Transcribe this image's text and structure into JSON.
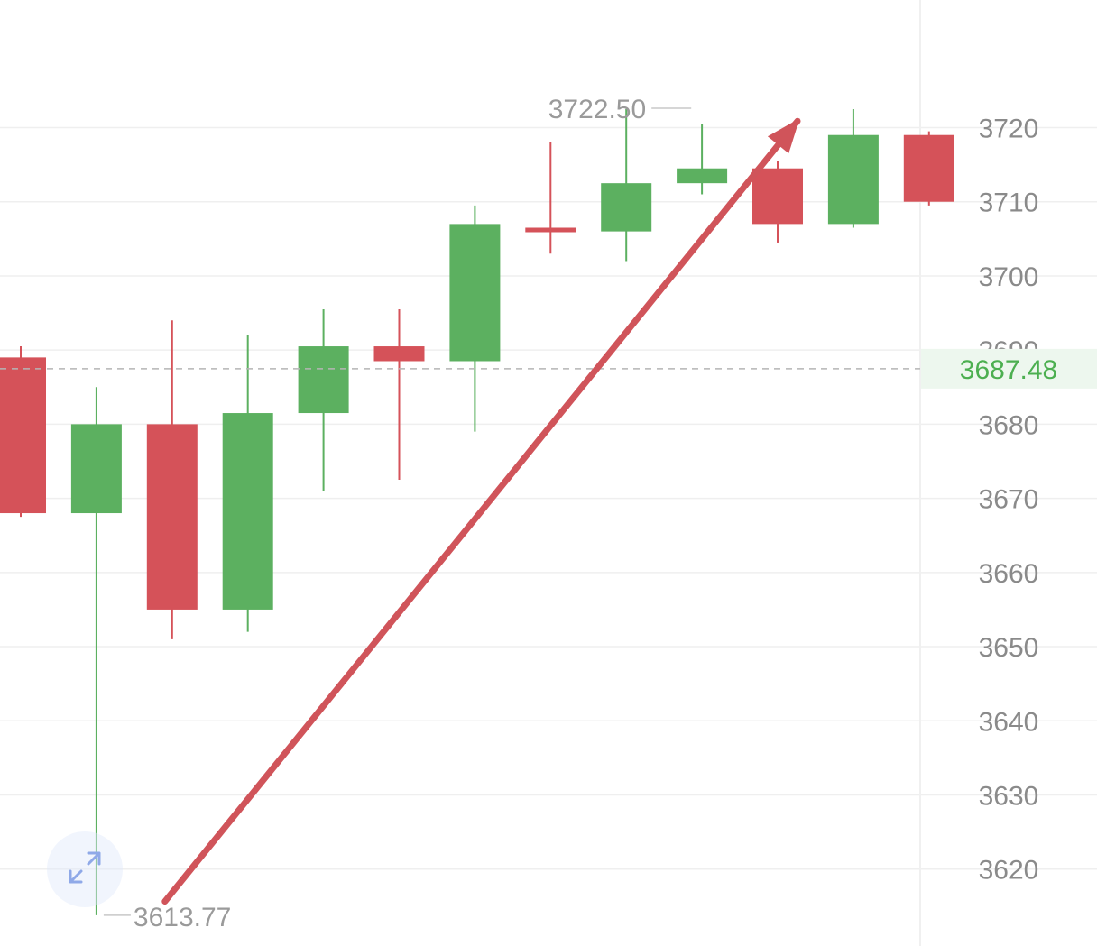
{
  "colors": {
    "up": "#5cb060",
    "down": "#d55259",
    "grid": "#efefef",
    "axis_text": "#8a8a8a",
    "current_price_text": "#4caf50",
    "current_price_bg": "#edf7ee",
    "annotation_arrow": "#d0545a",
    "expand_icon": "#8fa9e8"
  },
  "controls": {
    "expand_icon": "expand-arrows-icon"
  },
  "chart_data": {
    "type": "candlestick",
    "ylim": [
      3612,
      3737
    ],
    "y_ticks": [
      3620,
      3630,
      3640,
      3650,
      3660,
      3670,
      3680,
      3690,
      3700,
      3710,
      3720
    ],
    "y_tick_labels": [
      "3620",
      "3630",
      "3640",
      "3650",
      "3660",
      "3670",
      "3680",
      "3690",
      "3700",
      "3710",
      "3720"
    ],
    "grid": true,
    "current_price": 3687.48,
    "current_price_label": "3687.48",
    "high_marker": {
      "value": 3722.5,
      "label": "3722.50"
    },
    "low_marker": {
      "value": 3613.77,
      "label": "3613.77"
    },
    "candles": [
      {
        "open": 3689,
        "high": 3690.5,
        "low": 3667.5,
        "close": 3668
      },
      {
        "open": 3668,
        "high": 3685,
        "low": 3613.77,
        "close": 3680
      },
      {
        "open": 3680,
        "high": 3694,
        "low": 3651,
        "close": 3655
      },
      {
        "open": 3655,
        "high": 3692,
        "low": 3652,
        "close": 3681.5
      },
      {
        "open": 3681.5,
        "high": 3695.5,
        "low": 3671,
        "close": 3690.5
      },
      {
        "open": 3690.5,
        "high": 3695.5,
        "low": 3672.5,
        "close": 3688.5
      },
      {
        "open": 3688.5,
        "high": 3709.5,
        "low": 3679,
        "close": 3707
      },
      {
        "open": 3706.5,
        "high": 3718,
        "low": 3703,
        "close": 3706
      },
      {
        "open": 3706,
        "high": 3722.5,
        "low": 3702,
        "close": 3712.5
      },
      {
        "open": 3712.5,
        "high": 3720.5,
        "low": 3711,
        "close": 3714.5
      },
      {
        "open": 3714.5,
        "high": 3715.5,
        "low": 3704.5,
        "close": 3707
      },
      {
        "open": 3707,
        "high": 3722.5,
        "low": 3706.5,
        "close": 3719
      },
      {
        "open": 3719,
        "high": 3719.5,
        "low": 3709.5,
        "close": 3710
      }
    ],
    "annotation": {
      "type": "arrow",
      "from": {
        "candle_index": 2,
        "value": 3616
      },
      "to": {
        "candle_index": 10,
        "value": 3721
      }
    }
  }
}
